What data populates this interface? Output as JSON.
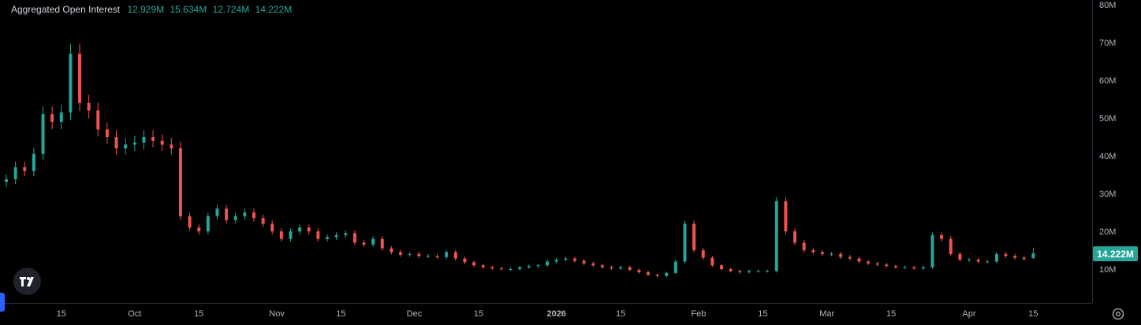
{
  "legend": {
    "title": "Aggregated Open Interest",
    "values": [
      "12.929M",
      "15.634M",
      "12.724M",
      "14.222M"
    ]
  },
  "last_value_label": "14.222M",
  "colors": {
    "up": "#26a69a",
    "down": "#ef5350",
    "bg": "#000000",
    "axis_text": "#b2b5be",
    "label_bg": "#26a69a"
  },
  "icons": {
    "logo": "tradingview-logo-icon",
    "settings": "gear-icon"
  },
  "chart_data": {
    "type": "candlestick",
    "title": "Aggregated Open Interest",
    "ylim": [
      0,
      80
    ],
    "y_unit": "M",
    "y_ticks": [
      "10M",
      "20M",
      "30M",
      "40M",
      "50M",
      "60M",
      "70M",
      "80M"
    ],
    "x_ticks": [
      {
        "label": "15",
        "date": "2025-09-15"
      },
      {
        "label": "Oct",
        "date": "2025-10-01"
      },
      {
        "label": "15",
        "date": "2025-10-15"
      },
      {
        "label": "Nov",
        "date": "2025-11-01"
      },
      {
        "label": "15",
        "date": "2025-11-15"
      },
      {
        "label": "Dec",
        "date": "2025-12-01"
      },
      {
        "label": "15",
        "date": "2025-12-15"
      },
      {
        "label": "2026",
        "date": "2026-01-01",
        "bold": true
      },
      {
        "label": "15",
        "date": "2026-01-15"
      },
      {
        "label": "Feb",
        "date": "2026-02-01"
      },
      {
        "label": "15",
        "date": "2026-02-15"
      },
      {
        "label": "Mar",
        "date": "2026-03-01"
      },
      {
        "label": "15",
        "date": "2026-03-15"
      },
      {
        "label": "Apr",
        "date": "2026-04-01"
      },
      {
        "label": "15",
        "date": "2026-04-15"
      }
    ],
    "x_range": [
      "2025-09-03",
      "2026-04-17"
    ],
    "series_close": [
      [
        "2025-09-03",
        33.8
      ],
      [
        "2025-09-05",
        37
      ],
      [
        "2025-09-07",
        36
      ],
      [
        "2025-09-09",
        40.5
      ],
      [
        "2025-09-11",
        51
      ],
      [
        "2025-09-13",
        49
      ],
      [
        "2025-09-15",
        51.5
      ],
      [
        "2025-09-17",
        67
      ],
      [
        "2025-09-19",
        54
      ],
      [
        "2025-09-21",
        52
      ],
      [
        "2025-09-23",
        47
      ],
      [
        "2025-09-25",
        45
      ],
      [
        "2025-09-27",
        42
      ],
      [
        "2025-09-29",
        43
      ],
      [
        "2025-10-01",
        43.5
      ],
      [
        "2025-10-03",
        45
      ],
      [
        "2025-10-05",
        44
      ],
      [
        "2025-10-07",
        43
      ],
      [
        "2025-10-09",
        42
      ],
      [
        "2025-10-11",
        24
      ],
      [
        "2025-10-13",
        21
      ],
      [
        "2025-10-15",
        20
      ],
      [
        "2025-10-17",
        24
      ],
      [
        "2025-10-19",
        26
      ],
      [
        "2025-10-21",
        23
      ],
      [
        "2025-10-23",
        24
      ],
      [
        "2025-10-25",
        25
      ],
      [
        "2025-10-27",
        23.5
      ],
      [
        "2025-10-29",
        22
      ],
      [
        "2025-10-31",
        20
      ],
      [
        "2025-11-02",
        18
      ],
      [
        "2025-11-04",
        20
      ],
      [
        "2025-11-06",
        21
      ],
      [
        "2025-11-08",
        20
      ],
      [
        "2025-11-10",
        18
      ],
      [
        "2025-11-12",
        18.5
      ],
      [
        "2025-11-14",
        19
      ],
      [
        "2025-11-16",
        19.5
      ],
      [
        "2025-11-18",
        17
      ],
      [
        "2025-11-20",
        16.5
      ],
      [
        "2025-11-22",
        18
      ],
      [
        "2025-11-24",
        15.5
      ],
      [
        "2025-11-26",
        14.5
      ],
      [
        "2025-11-28",
        13.8
      ],
      [
        "2025-11-30",
        14
      ],
      [
        "2025-12-02",
        13.5
      ],
      [
        "2025-12-04",
        13.5
      ],
      [
        "2025-12-06",
        13.2
      ],
      [
        "2025-12-08",
        14.5
      ],
      [
        "2025-12-10",
        12.8
      ],
      [
        "2025-12-12",
        11.8
      ],
      [
        "2025-12-14",
        11
      ],
      [
        "2025-12-16",
        10.5
      ],
      [
        "2025-12-18",
        10.2
      ],
      [
        "2025-12-20",
        10
      ],
      [
        "2025-12-22",
        10
      ],
      [
        "2025-12-24",
        10.5
      ],
      [
        "2025-12-26",
        10.8
      ],
      [
        "2025-12-28",
        11
      ],
      [
        "2025-12-30",
        12
      ],
      [
        "2026-01-01",
        12.5
      ],
      [
        "2026-01-03",
        12.8
      ],
      [
        "2026-01-05",
        12.2
      ],
      [
        "2026-01-07",
        11.5
      ],
      [
        "2026-01-09",
        11
      ],
      [
        "2026-01-11",
        10.5
      ],
      [
        "2026-01-13",
        10.2
      ],
      [
        "2026-01-15",
        10.5
      ],
      [
        "2026-01-17",
        9.8
      ],
      [
        "2026-01-19",
        9.2
      ],
      [
        "2026-01-21",
        8.5
      ],
      [
        "2026-01-23",
        8.2
      ],
      [
        "2026-01-25",
        9
      ],
      [
        "2026-01-27",
        12
      ],
      [
        "2026-01-29",
        22
      ],
      [
        "2026-01-31",
        15
      ],
      [
        "2026-02-02",
        13
      ],
      [
        "2026-02-04",
        11
      ],
      [
        "2026-02-06",
        10
      ],
      [
        "2026-02-08",
        9.5
      ],
      [
        "2026-02-10",
        9.2
      ],
      [
        "2026-02-12",
        9.5
      ],
      [
        "2026-02-14",
        9.5
      ],
      [
        "2026-02-16",
        9.5
      ],
      [
        "2026-02-18",
        28
      ],
      [
        "2026-02-20",
        20
      ],
      [
        "2026-02-22",
        17
      ],
      [
        "2026-02-24",
        15
      ],
      [
        "2026-02-26",
        14.5
      ],
      [
        "2026-02-28",
        14
      ],
      [
        "2026-03-02",
        14
      ],
      [
        "2026-03-04",
        13.2
      ],
      [
        "2026-03-06",
        12.8
      ],
      [
        "2026-03-08",
        12
      ],
      [
        "2026-03-10",
        11.5
      ],
      [
        "2026-03-12",
        11.2
      ],
      [
        "2026-03-14",
        10.8
      ],
      [
        "2026-03-16",
        10.5
      ],
      [
        "2026-03-18",
        10.5
      ],
      [
        "2026-03-20",
        10.2
      ],
      [
        "2026-03-22",
        10.5
      ],
      [
        "2026-03-24",
        19
      ],
      [
        "2026-03-26",
        18
      ],
      [
        "2026-03-28",
        14
      ],
      [
        "2026-03-30",
        12.5
      ],
      [
        "2026-04-01",
        12.5
      ],
      [
        "2026-04-03",
        12
      ],
      [
        "2026-04-05",
        12
      ],
      [
        "2026-04-07",
        14
      ],
      [
        "2026-04-09",
        13.5
      ],
      [
        "2026-04-11",
        13
      ],
      [
        "2026-04-13",
        12.7
      ],
      [
        "2026-04-15",
        14.222
      ]
    ],
    "last": {
      "open": 12.929,
      "high": 15.634,
      "low": 12.724,
      "close": 14.222
    }
  }
}
